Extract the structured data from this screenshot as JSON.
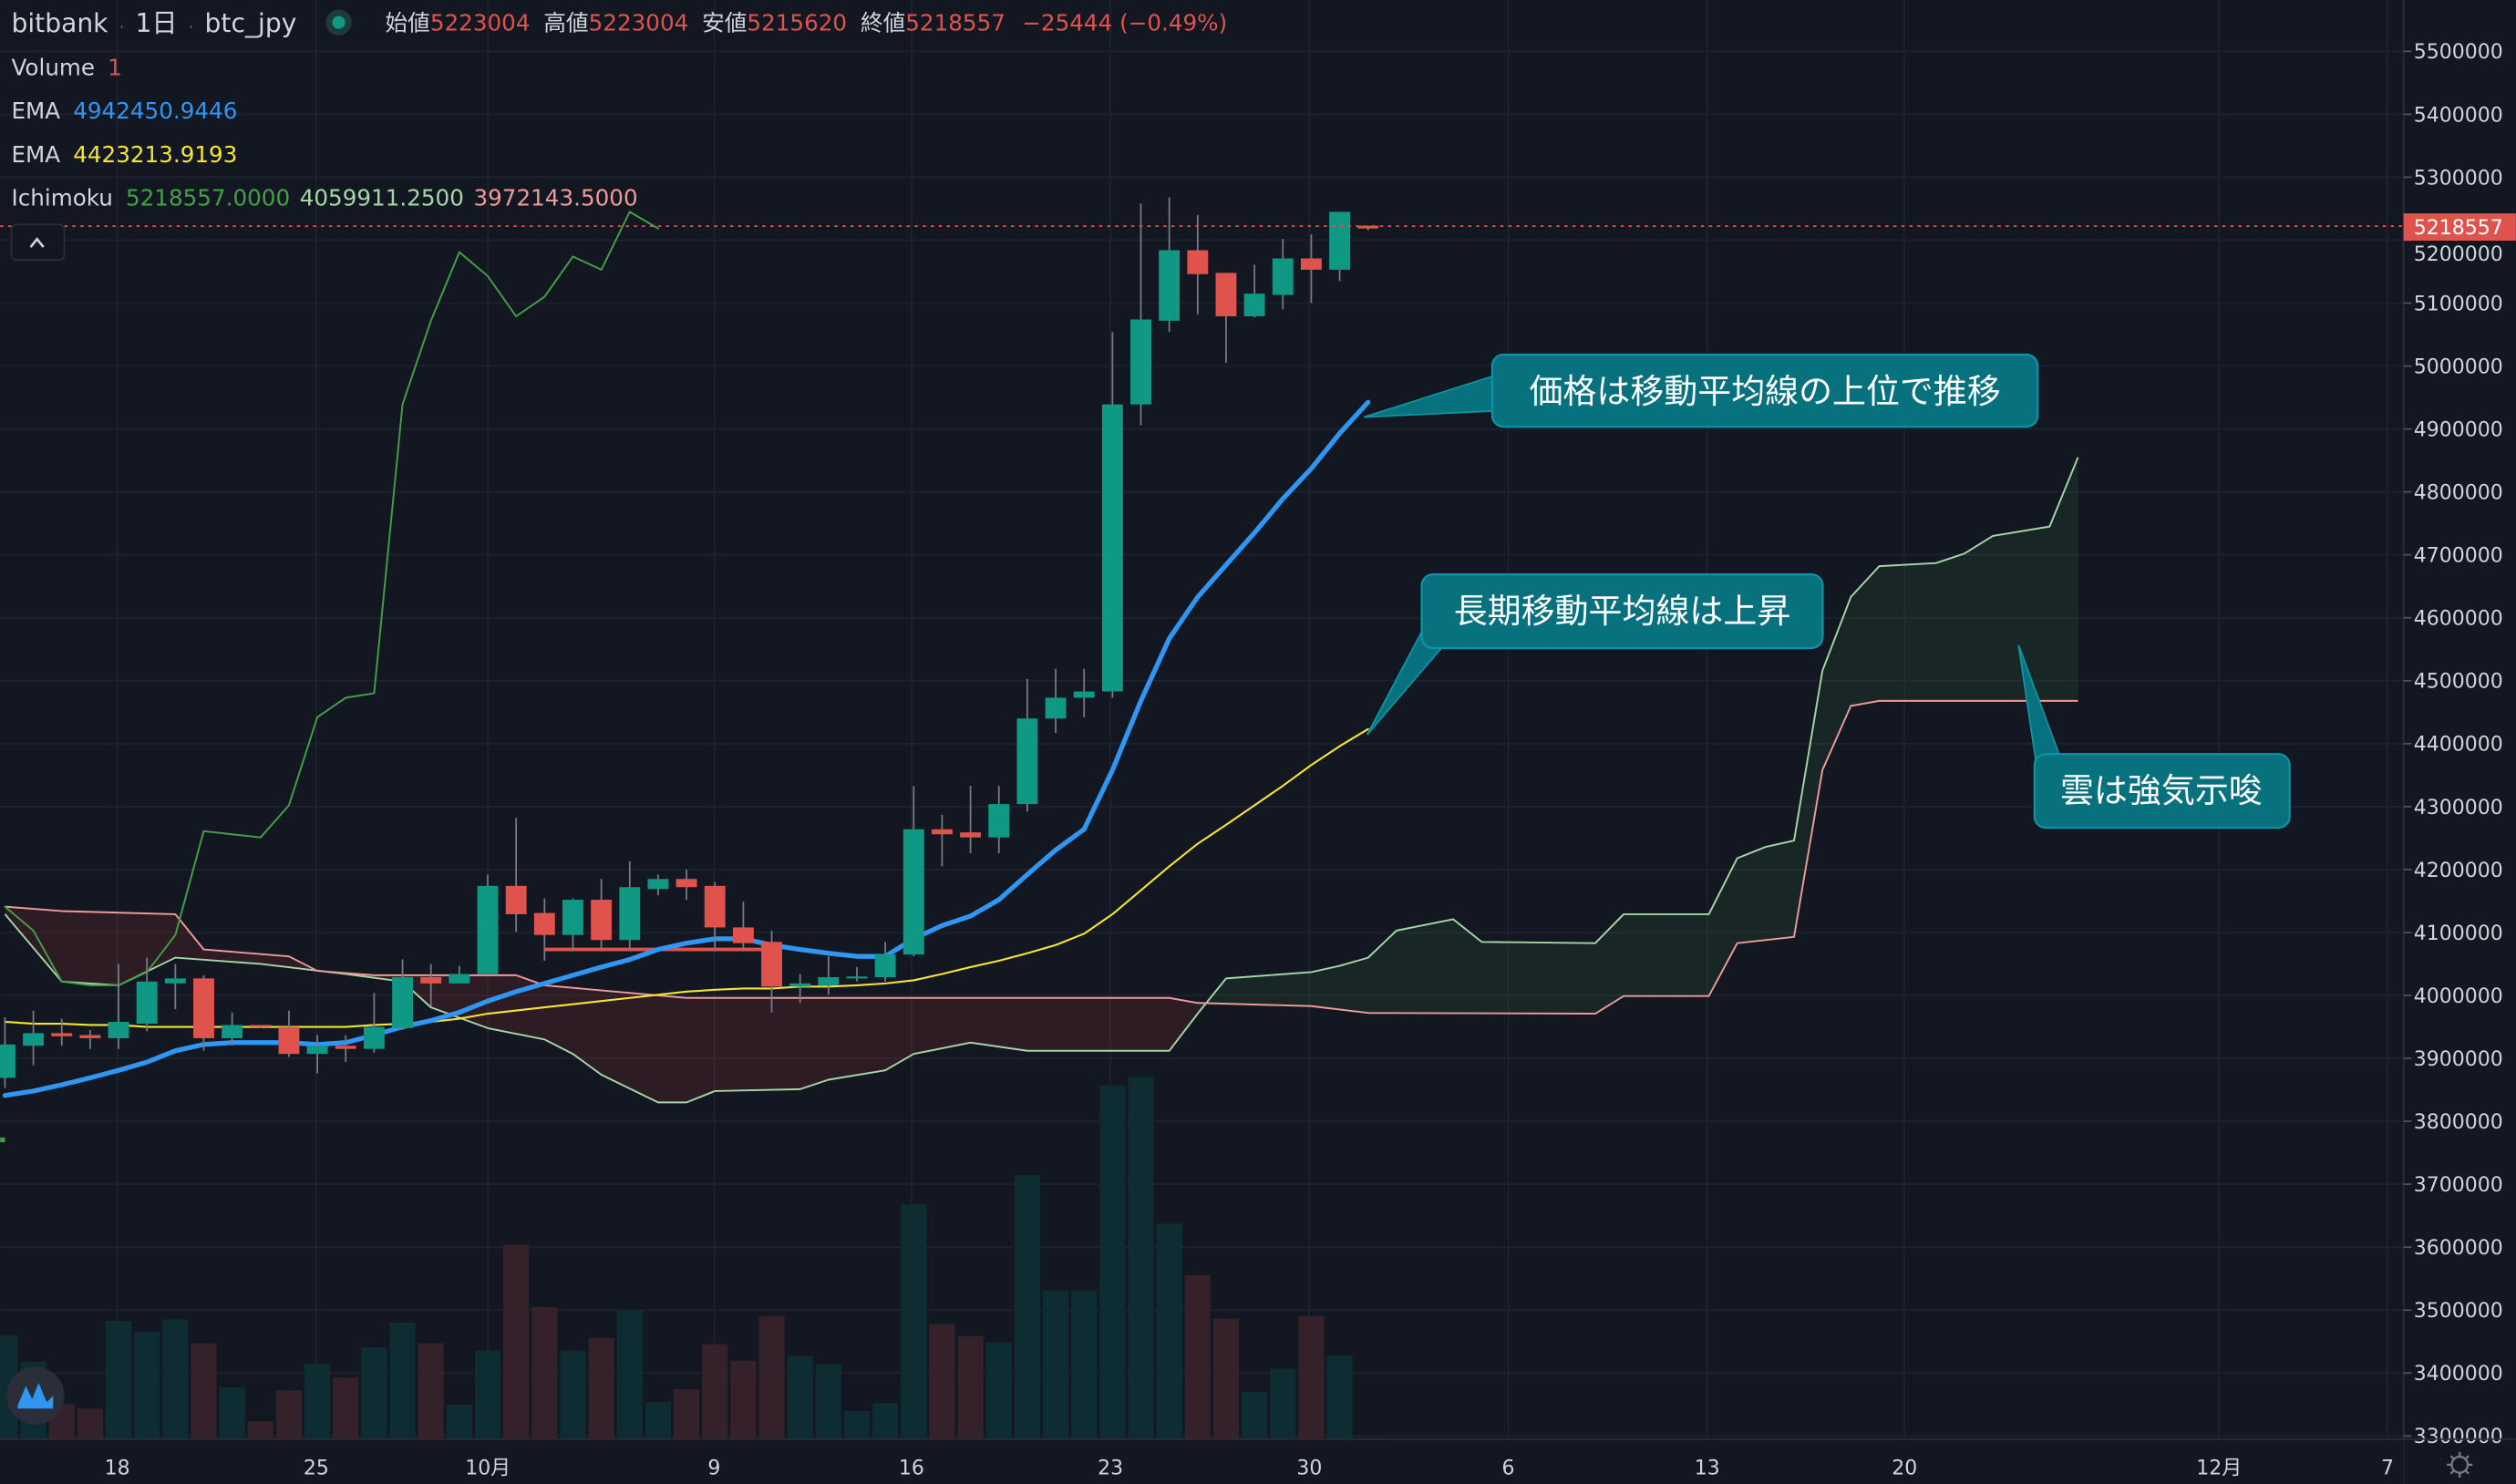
{
  "header": {
    "exchange": "bitbank",
    "interval": "1日",
    "symbol": "btc_jpy",
    "separator": "·",
    "open_label": "始値",
    "open_value": "5223004",
    "high_label": "高値",
    "high_value": "5223004",
    "low_label": "安値",
    "low_value": "5215620",
    "close_label": "終値",
    "close_value": "5218557",
    "change": "−25444 (−0.49%)"
  },
  "indicators": {
    "volume": {
      "label": "Volume",
      "value": "1"
    },
    "ema_short": {
      "label": "EMA",
      "value": "4942450.9446",
      "color": "#2f96f3"
    },
    "ema_long": {
      "label": "EMA",
      "value": "4423213.9193",
      "color": "#f5e335"
    },
    "ichimoku": {
      "label": "Ichimoku",
      "v1": "5218557.0000",
      "v2": "4059911.2500",
      "v3": "3972143.5000"
    },
    "collapse_icon": "chevron-up-icon"
  },
  "price_axis": {
    "current_price_label": "5218557",
    "ticks": [
      "5500000",
      "5400000",
      "5300000",
      "5200000",
      "5100000",
      "5000000",
      "4900000",
      "4800000",
      "4700000",
      "4600000",
      "4500000",
      "4400000",
      "4300000",
      "4200000",
      "4100000",
      "4000000",
      "3900000",
      "3800000",
      "3700000",
      "3600000",
      "3500000",
      "3400000",
      "3300000"
    ]
  },
  "time_axis": {
    "labels": [
      "18",
      "25",
      "10月",
      "9",
      "16",
      "23",
      "30",
      "6",
      "13",
      "20",
      "12月",
      "7"
    ],
    "settings_icon": "gear-icon"
  },
  "annotations": {
    "price_above_ma": "価格は移動平均線の上位で推移",
    "long_ma_rising": "長期移動平均線は上昇",
    "cloud_bullish": "雲は強気示唆"
  },
  "colors": {
    "background": "#131722",
    "up": "#0f9985",
    "down": "#e0534d",
    "volume_up": "#0e2d33",
    "volume_down": "#35212a",
    "lagging_span": "#43a047",
    "leading_span_a": "#a5d6a7",
    "leading_span_b": "#ef9a9a",
    "callout": "#08717e"
  },
  "chart_data": {
    "type": "candlestick",
    "title": "",
    "xlabel": "",
    "ylabel": "",
    "ylim": [
      3300000,
      5500000
    ],
    "grid": true,
    "candle_fields": [
      "date",
      "open",
      "high",
      "low",
      "close"
    ],
    "candles": [
      [
        "09-14",
        3869000,
        3965000,
        3853000,
        3922000
      ],
      [
        "09-15",
        3920000,
        3976000,
        3889000,
        3940000
      ],
      [
        "09-16",
        3940000,
        3963000,
        3920000,
        3935000
      ],
      [
        "09-17",
        3937000,
        3945000,
        3915000,
        3932000
      ],
      [
        "09-18",
        3932000,
        4050000,
        3915000,
        3958000
      ],
      [
        "09-19",
        3955000,
        4060000,
        3943000,
        4022000
      ],
      [
        "09-20",
        4019000,
        4050000,
        3978000,
        4027000
      ],
      [
        "09-21",
        4027000,
        4032000,
        3912000,
        3932000
      ],
      [
        "09-22",
        3932000,
        3973000,
        3920000,
        3953000
      ],
      [
        "09-23",
        3953000,
        3953000,
        3948000,
        3950000
      ],
      [
        "09-24",
        3950000,
        3976000,
        3902000,
        3907000
      ],
      [
        "09-25",
        3907000,
        3937000,
        3876000,
        3920000
      ],
      [
        "09-26",
        3920000,
        3937000,
        3894000,
        3915000
      ],
      [
        "09-27",
        3915000,
        4004000,
        3909000,
        3950000
      ],
      [
        "09-28",
        3948000,
        4057000,
        3945000,
        4029000
      ],
      [
        "09-29",
        4029000,
        4050000,
        3983000,
        4019000
      ],
      [
        "09-30",
        4019000,
        4047000,
        4019000,
        4034000
      ],
      [
        "10-01",
        4034000,
        4192000,
        4034000,
        4174000
      ],
      [
        "10-02",
        4174000,
        4282000,
        4101000,
        4129000
      ],
      [
        "10-03",
        4131000,
        4154000,
        4055000,
        4096000
      ],
      [
        "10-04",
        4096000,
        4154000,
        4070000,
        4152000
      ],
      [
        "10-05",
        4152000,
        4185000,
        4070000,
        4088000
      ],
      [
        "10-06",
        4088000,
        4213000,
        4070000,
        4172000
      ],
      [
        "10-07",
        4169000,
        4192000,
        4159000,
        4185000
      ],
      [
        "10-08",
        4185000,
        4200000,
        4152000,
        4172000
      ],
      [
        "10-09",
        4174000,
        4180000,
        4070000,
        4108000
      ],
      [
        "10-10",
        4108000,
        4149000,
        4070000,
        4083000
      ],
      [
        "10-11",
        4085000,
        4103000,
        3973000,
        4014000
      ],
      [
        "10-12",
        4014000,
        4034000,
        3988000,
        4019000
      ],
      [
        "10-13",
        4016000,
        4062000,
        4001000,
        4029000
      ],
      [
        "10-14",
        4029000,
        4045000,
        4022000,
        4030000
      ],
      [
        "10-15",
        4029000,
        4085000,
        4022000,
        4065000
      ],
      [
        "10-16",
        4065000,
        4333000,
        4062000,
        4264000
      ],
      [
        "10-17",
        4264000,
        4287000,
        4205000,
        4256000
      ],
      [
        "10-18",
        4259000,
        4333000,
        4226000,
        4251000
      ],
      [
        "10-19",
        4251000,
        4333000,
        4226000,
        4304000
      ],
      [
        "10-20",
        4304000,
        4503000,
        4292000,
        4440000
      ],
      [
        "10-21",
        4440000,
        4519000,
        4417000,
        4473000
      ],
      [
        "10-22",
        4473000,
        4519000,
        4442000,
        4483000
      ],
      [
        "10-23",
        4483000,
        5054000,
        4473000,
        4939000
      ],
      [
        "10-24",
        4939000,
        5258000,
        4906000,
        5074000
      ],
      [
        "10-25",
        5072000,
        5268000,
        5054000,
        5184000
      ],
      [
        "10-26",
        5184000,
        5240000,
        5082000,
        5146000
      ],
      [
        "10-27",
        5148000,
        5148000,
        5005000,
        5079000
      ],
      [
        "10-28",
        5079000,
        5161000,
        5077000,
        5115000
      ],
      [
        "10-29",
        5113000,
        5202000,
        5090000,
        5171000
      ],
      [
        "10-30",
        5171000,
        5209000,
        5100000,
        5153000
      ],
      [
        "10-31",
        5153000,
        5245000,
        5135000,
        5245000
      ],
      [
        "11-01",
        5223004,
        5223004,
        5215620,
        5218557
      ]
    ],
    "volume_relative": [
      340,
      254,
      115,
      100,
      388,
      352,
      392,
      314,
      170,
      59,
      160,
      247,
      202,
      301,
      382,
      314,
      113,
      290,
      637,
      433,
      290,
      332,
      424,
      122,
      164,
      311,
      257,
      403,
      272,
      245,
      92,
      118,
      770,
      377,
      338,
      317,
      866,
      488,
      488,
      1160,
      1187,
      707,
      538,
      395,
      155,
      230,
      403,
      275,
      4
    ],
    "ema_short": [
      3841000,
      3848000,
      3858000,
      3869000,
      3881000,
      3894000,
      3912000,
      3922000,
      3925000,
      3925000,
      3925000,
      3922000,
      3925000,
      3937000,
      3950000,
      3960000,
      3973000,
      3991000,
      4006000,
      4019000,
      4032000,
      4045000,
      4057000,
      4073000,
      4083000,
      4090000,
      4090000,
      4080000,
      4073000,
      4067000,
      4062000,
      4062000,
      4090000,
      4111000,
      4126000,
      4152000,
      4192000,
      4231000,
      4264000,
      4358000,
      4468000,
      4567000,
      4633000,
      4684000,
      4735000,
      4789000,
      4837000,
      4893000,
      4942451
    ],
    "ema_long": [
      3958000,
      3955000,
      3955000,
      3953000,
      3953000,
      3950000,
      3950000,
      3950000,
      3950000,
      3950000,
      3950000,
      3950000,
      3950000,
      3953000,
      3955000,
      3958000,
      3963000,
      3971000,
      3976000,
      3981000,
      3986000,
      3991000,
      3996000,
      4001000,
      4006000,
      4009000,
      4011000,
      4011000,
      4014000,
      4014000,
      4016000,
      4019000,
      4024000,
      4034000,
      4045000,
      4055000,
      4067000,
      4080000,
      4098000,
      4129000,
      4167000,
      4205000,
      4241000,
      4271000,
      4302000,
      4333000,
      4366000,
      4396000,
      4423214
    ],
    "lagging_span": [
      4141000,
      4103000,
      4022000,
      4016000,
      4016000,
      4037000,
      4096000,
      4261000,
      4256000,
      4251000,
      4302000,
      4442000,
      4473000,
      4480000,
      4939000,
      5072000,
      5181000,
      5143000,
      5079000,
      5110000,
      5174000,
      5153000,
      5245000,
      5218557
    ],
    "leading_span_a": [
      [
        "09-14",
        4129000
      ],
      [
        "09-16",
        4022000
      ],
      [
        "09-18",
        4016000
      ],
      [
        "09-20",
        4060000
      ],
      [
        "09-23",
        4050000
      ],
      [
        "09-26",
        4034000
      ],
      [
        "09-28",
        4022000
      ],
      [
        "09-29",
        3981000
      ],
      [
        "10-01",
        3948000
      ],
      [
        "10-03",
        3930000
      ],
      [
        "10-04",
        3907000
      ],
      [
        "10-05",
        3874000
      ],
      [
        "10-07",
        3830000
      ],
      [
        "10-08",
        3830000
      ],
      [
        "10-09",
        3848000
      ],
      [
        "10-12",
        3851000
      ],
      [
        "10-13",
        3866000
      ],
      [
        "10-15",
        3881000
      ],
      [
        "10-16",
        3907000
      ],
      [
        "10-18",
        3925000
      ],
      [
        "10-20",
        3912000
      ],
      [
        "10-25",
        3912000
      ],
      [
        "10-26",
        3971000
      ],
      [
        "10-27",
        4027000
      ],
      [
        "10-30",
        4037000
      ],
      [
        "10-31",
        4047000
      ],
      [
        "11-01",
        4059911
      ],
      [
        "11-02",
        4103000
      ],
      [
        "11-04",
        4121000
      ],
      [
        "11-05",
        4085000
      ],
      [
        "11-09",
        4083000
      ],
      [
        "11-10",
        4129000
      ],
      [
        "11-13",
        4129000
      ],
      [
        "11-14",
        4218000
      ],
      [
        "11-15",
        4236000
      ],
      [
        "11-16",
        4246000
      ],
      [
        "11-17",
        4516000
      ],
      [
        "11-18",
        4633000
      ],
      [
        "11-19",
        4682000
      ],
      [
        "11-21",
        4687000
      ],
      [
        "11-22",
        4702000
      ],
      [
        "11-23",
        4730000
      ],
      [
        "11-25",
        4745000
      ],
      [
        "11-26",
        4855000
      ]
    ],
    "leading_span_b": [
      [
        "09-14",
        4141000
      ],
      [
        "09-16",
        4134000
      ],
      [
        "09-20",
        4129000
      ],
      [
        "09-21",
        4073000
      ],
      [
        "09-24",
        4062000
      ],
      [
        "09-25",
        4039000
      ],
      [
        "09-27",
        4032000
      ],
      [
        "10-02",
        4032000
      ],
      [
        "10-03",
        4016000
      ],
      [
        "10-08",
        3996000
      ],
      [
        "10-25",
        3996000
      ],
      [
        "10-26",
        3988000
      ],
      [
        "10-30",
        3983000
      ],
      [
        "11-01",
        3972144
      ],
      [
        "11-09",
        3971000
      ],
      [
        "11-10",
        3999000
      ],
      [
        "11-13",
        3999000
      ],
      [
        "11-14",
        4083000
      ],
      [
        "11-16",
        4093000
      ],
      [
        "11-17",
        4358000
      ],
      [
        "11-18",
        4460000
      ],
      [
        "11-19",
        4468000
      ],
      [
        "11-26",
        4468000
      ]
    ],
    "red_segment": {
      "from": "10-03",
      "to": "10-11",
      "price": 4073000
    },
    "current_price": 5218557
  }
}
